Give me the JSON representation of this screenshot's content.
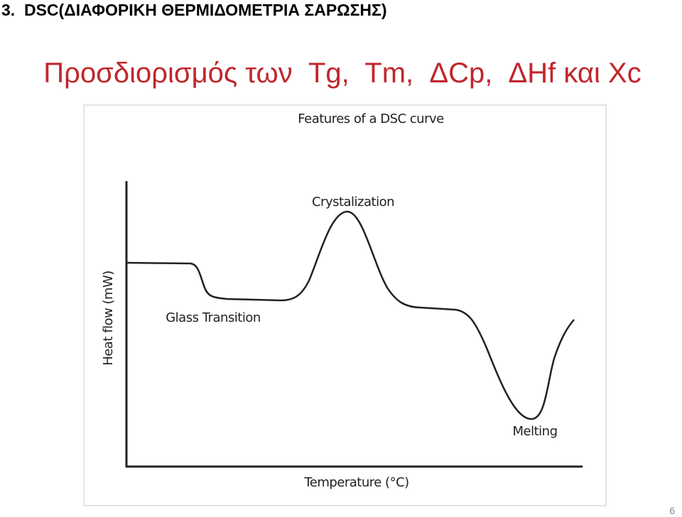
{
  "header": {
    "title": "3.  DSC(ΔΙΑΦΟΡΙΚΗ ΘΕΡΜΙΔΟΜΕΤΡΙΑ ΣΑΡΩΣΗΣ)",
    "subtitle": "Προσδιορισμός των  Tg,  Tm,  ΔCp,  ΔHf και Xc"
  },
  "figure": {
    "title": "Features of a DSC curve",
    "annotations": [
      "Crystalization",
      "Glass Transition",
      "Melting"
    ],
    "x_label": "Temperature (°C)",
    "y_label": "Heat flow (mW)"
  },
  "footer": {
    "page_number": "6"
  }
}
